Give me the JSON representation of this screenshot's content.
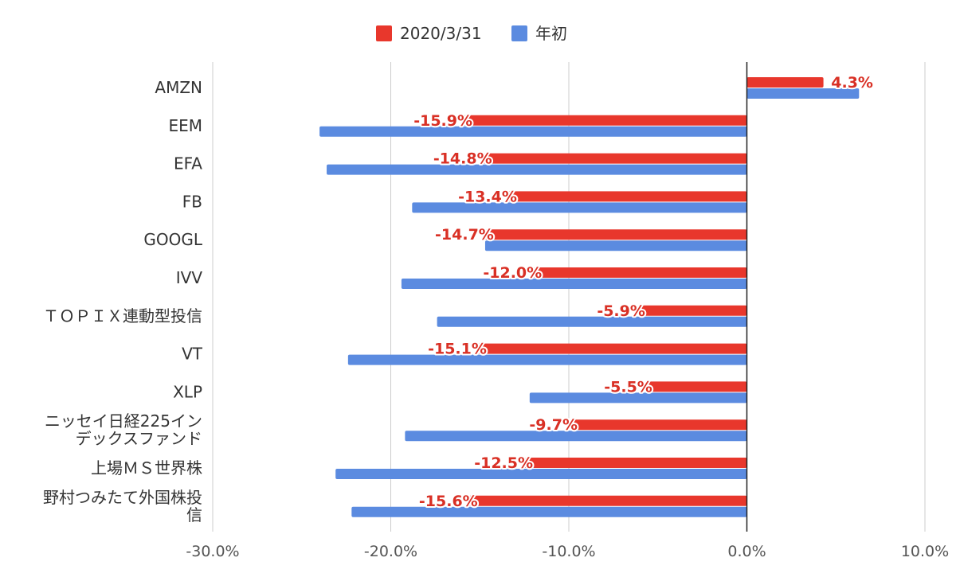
{
  "chart_data": {
    "type": "bar",
    "orientation": "horizontal",
    "categories": [
      [
        "AMZN"
      ],
      [
        "EEM"
      ],
      [
        "EFA"
      ],
      [
        "FB"
      ],
      [
        "GOOGL"
      ],
      [
        "IVV"
      ],
      [
        "ＴＯＰＩＸ連動型投信"
      ],
      [
        "VT"
      ],
      [
        "XLP"
      ],
      [
        "ニッセイ日経225イン",
        "デックスファンド"
      ],
      [
        "上場ＭＳ世界株"
      ],
      [
        "野村つみたて外国株投",
        "信"
      ]
    ],
    "series": [
      {
        "name": "2020/3/31",
        "color": "#e8372c",
        "values": [
          4.3,
          -15.9,
          -14.8,
          -13.4,
          -14.7,
          -12.0,
          -5.9,
          -15.1,
          -5.5,
          -9.7,
          -12.5,
          -15.6
        ],
        "data_labels": [
          "4.3%",
          "-15.9%",
          "-14.8%",
          "-13.4%",
          "-14.7%",
          "-12.0%",
          "-5.9%",
          "-15.1%",
          "-5.5%",
          "-9.7%",
          "-12.5%",
          "-15.6%"
        ]
      },
      {
        "name": "年初",
        "color": "#5b8be0",
        "values": [
          6.3,
          -24.0,
          -23.6,
          -18.8,
          -14.7,
          -19.4,
          -17.4,
          -22.4,
          -12.2,
          -19.2,
          -23.1,
          -22.2
        ]
      }
    ],
    "xlim": [
      -30,
      10
    ],
    "xticks": [
      -30,
      -20,
      -10,
      0,
      10
    ],
    "xtick_labels": [
      "-30.0%",
      "-20.0%",
      "-10.0%",
      "0.0%",
      "10.0%"
    ],
    "grid": "vertical",
    "legend": "top-center"
  }
}
